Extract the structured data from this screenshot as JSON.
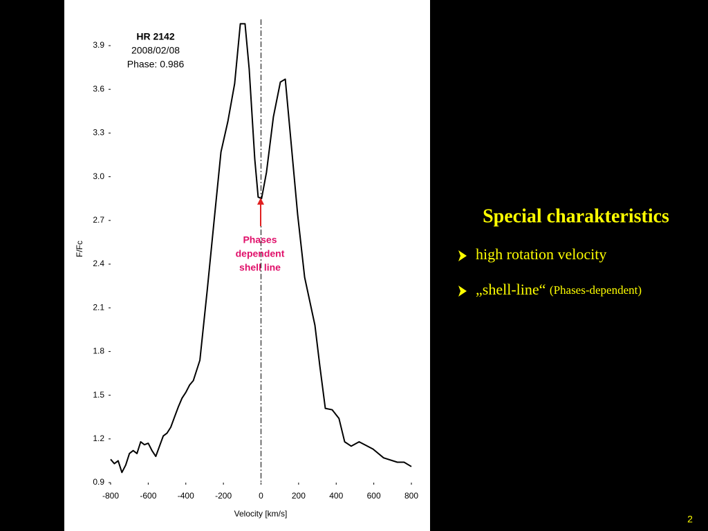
{
  "chart_data": {
    "type": "line",
    "xlabel": "Velocity [km/s]",
    "ylabel": "F/Fc",
    "annotations": [
      "HR 2142",
      "2008/02/08",
      "Phase: 0.986"
    ],
    "callout": [
      "Phases",
      "dependent",
      "shell line"
    ],
    "color": "#000000",
    "callout_color": "#e0106a",
    "arrow_color": "#e02020",
    "x": [
      -800,
      -780,
      -760,
      -740,
      -720,
      -700,
      -680,
      -660,
      -640,
      -620,
      -600,
      -580,
      -560,
      -540,
      -520,
      -500,
      -480,
      -460,
      -440,
      -420,
      -400,
      -380,
      -360,
      -325,
      -286,
      -250,
      -213,
      -176,
      -140,
      -110,
      -85,
      -63,
      -33,
      -15,
      3,
      29,
      66,
      103,
      129,
      158,
      195,
      232,
      287,
      313,
      342,
      379,
      415,
      445,
      480,
      522,
      596,
      652,
      725,
      761,
      800
    ],
    "values": [
      1.06,
      1.03,
      1.05,
      0.97,
      1.02,
      1.1,
      1.12,
      1.1,
      1.18,
      1.16,
      1.17,
      1.12,
      1.08,
      1.15,
      1.22,
      1.24,
      1.28,
      1.35,
      1.42,
      1.48,
      1.52,
      1.57,
      1.6,
      1.74,
      2.22,
      2.69,
      3.17,
      3.38,
      3.64,
      4.05,
      4.05,
      3.74,
      3.12,
      2.86,
      2.85,
      3.03,
      3.41,
      3.65,
      3.67,
      3.26,
      2.74,
      2.31,
      1.98,
      1.7,
      1.41,
      1.4,
      1.34,
      1.18,
      1.15,
      1.18,
      1.13,
      1.07,
      1.04,
      1.04,
      1.01
    ],
    "xlim": [
      -800,
      800
    ],
    "ylim": [
      0.9,
      4.1
    ],
    "xticks": [
      -800,
      -600,
      -400,
      -200,
      0,
      200,
      400,
      600,
      800
    ],
    "yticks": [
      0.9,
      1.2,
      1.5,
      1.8,
      2.1,
      2.4,
      2.7,
      {
        "value": 3,
        "label": "3.0"
      },
      3.3,
      3.6,
      3.9
    ]
  },
  "slide": {
    "title": "Special charakteristics",
    "bullets": [
      "high rotation velocity",
      "„shell-line“"
    ],
    "note": "(Phases-dependent)",
    "page": "2"
  }
}
